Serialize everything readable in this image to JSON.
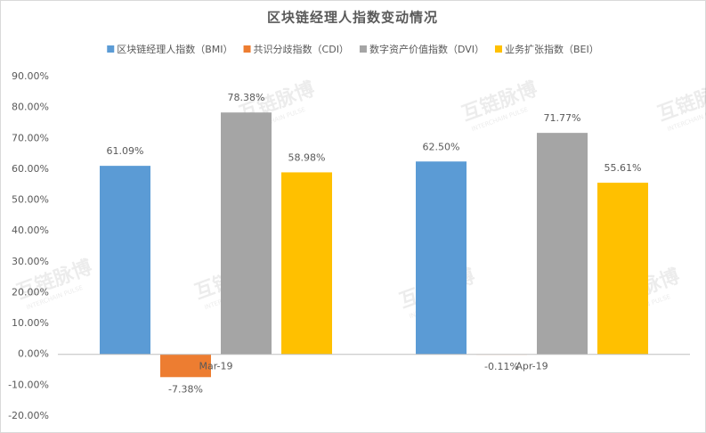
{
  "chart_data": {
    "type": "bar",
    "title": "区块链经理人指数变动情况",
    "categories": [
      "Mar-19",
      "Apr-19"
    ],
    "series": [
      {
        "name": "区块链经理人指数（BMI）",
        "color": "#5b9bd5",
        "values": [
          61.09,
          62.5
        ],
        "value_labels": [
          "61.09%",
          "62.50%"
        ]
      },
      {
        "name": "共识分歧指数（CDI）",
        "color": "#ed7d31",
        "values": [
          -7.38,
          -0.11
        ],
        "value_labels": [
          "-7.38%",
          "-0.11%"
        ]
      },
      {
        "name": "数字资产价值指数（DVI）",
        "color": "#a5a5a5",
        "values": [
          78.38,
          71.77
        ],
        "value_labels": [
          "78.38%",
          "71.77%"
        ]
      },
      {
        "name": "业务扩张指数（BEI）",
        "color": "#ffc000",
        "values": [
          58.98,
          55.61
        ],
        "value_labels": [
          "58.98%",
          "55.61%"
        ]
      }
    ],
    "ylim": [
      -20,
      90
    ],
    "yticks": [
      {
        "value": -20,
        "label": "-20.00%"
      },
      {
        "value": -10,
        "label": "-10.00%"
      },
      {
        "value": 0,
        "label": "0.00%"
      },
      {
        "value": 10,
        "label": "10.00%"
      },
      {
        "value": 20,
        "label": "20.00%"
      },
      {
        "value": 30,
        "label": "30.00%"
      },
      {
        "value": 40,
        "label": "40.00%"
      },
      {
        "value": 50,
        "label": "50.00%"
      },
      {
        "value": 60,
        "label": "60.00%"
      },
      {
        "value": 70,
        "label": "70.00%"
      },
      {
        "value": 80,
        "label": "80.00%"
      },
      {
        "value": 90,
        "label": "90.00%"
      }
    ],
    "grid": false,
    "legend": "top"
  },
  "watermark": {
    "text": "互链脉博",
    "subtext": "INTERCHAIN PULSE"
  }
}
